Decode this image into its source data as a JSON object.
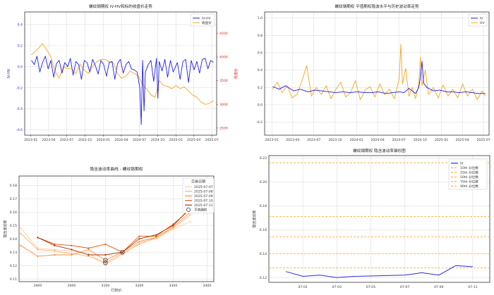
{
  "chart_data": [
    {
      "type": "line",
      "title": "螺纹钢期权 IV-HV和标的收盘价走势",
      "xlabel": "",
      "ylabel": "IV-HV",
      "y2label": "收盘价",
      "x_ticks": [
        "2023-01",
        "2023-04",
        "2023-07",
        "2023-10",
        "2024-01",
        "2024-04",
        "2024-07",
        "2024-10",
        "2025-01",
        "2025-04",
        "2025-07"
      ],
      "xlim": [
        "2022-12-01",
        "2025-07-25"
      ],
      "ylim": [
        -0.65,
        0.52
      ],
      "y_ticks": [
        -0.6,
        -0.4,
        -0.2,
        0.0,
        0.2,
        0.4
      ],
      "y2lim": [
        2350,
        4950
      ],
      "y2_ticks": [
        2500,
        3000,
        3500,
        4000,
        4500
      ],
      "grid": true,
      "legend": "upper right",
      "series": [
        {
          "name": "IV-HV",
          "axis": "left",
          "color": "#1f1fe6",
          "x": [
            "2023-01-04",
            "2023-01-18",
            "2023-02-01",
            "2023-02-15",
            "2023-03-01",
            "2023-03-15",
            "2023-03-29",
            "2023-04-12",
            "2023-04-26",
            "2023-05-10",
            "2023-05-24",
            "2023-06-07",
            "2023-06-21",
            "2023-07-05",
            "2023-07-19",
            "2023-08-02",
            "2023-08-16",
            "2023-08-30",
            "2023-09-13",
            "2023-09-27",
            "2023-10-11",
            "2023-10-25",
            "2023-11-08",
            "2023-11-22",
            "2023-12-06",
            "2023-12-20",
            "2024-01-03",
            "2024-01-17",
            "2024-01-31",
            "2024-02-14",
            "2024-02-28",
            "2024-03-13",
            "2024-03-27",
            "2024-04-10",
            "2024-04-24",
            "2024-05-08",
            "2024-05-22",
            "2024-06-05",
            "2024-06-19",
            "2024-07-03",
            "2024-07-10",
            "2024-07-17",
            "2024-07-24",
            "2024-07-31",
            "2024-08-14",
            "2024-08-28",
            "2024-09-11",
            "2024-09-25",
            "2024-10-02",
            "2024-10-09",
            "2024-10-23",
            "2024-11-06",
            "2024-11-20",
            "2024-12-04",
            "2024-12-18",
            "2025-01-08",
            "2025-01-22",
            "2025-02-05",
            "2025-02-19",
            "2025-03-05",
            "2025-03-19",
            "2025-04-02",
            "2025-04-16",
            "2025-04-30",
            "2025-05-14",
            "2025-05-28",
            "2025-06-11",
            "2025-06-25",
            "2025-07-09"
          ],
          "values": [
            0.06,
            0.02,
            0.1,
            -0.05,
            0.04,
            0.1,
            -0.02,
            0.06,
            -0.1,
            0.03,
            0.06,
            -0.06,
            0.04,
            0.0,
            0.08,
            -0.08,
            0.05,
            0.02,
            -0.12,
            0.06,
            0.04,
            -0.05,
            0.07,
            0.01,
            -0.07,
            0.06,
            0.02,
            -0.09,
            0.04,
            0.05,
            -0.12,
            0.03,
            0.07,
            -0.06,
            0.02,
            0.05,
            -0.02,
            -0.03,
            -0.05,
            -0.2,
            -0.55,
            0.06,
            -0.42,
            -0.05,
            0.02,
            0.06,
            -0.14,
            0.08,
            -0.3,
            0.05,
            -0.04,
            0.07,
            -0.1,
            0.06,
            -0.05,
            0.04,
            -0.12,
            0.05,
            0.07,
            -0.15,
            0.06,
            -0.03,
            0.05,
            -0.06,
            0.07,
            0.08,
            -0.02,
            0.06,
            0.04
          ]
        },
        {
          "name": "收盘价",
          "axis": "right",
          "color": "#f5a623",
          "x": [
            "2023-01-04",
            "2023-02-01",
            "2023-03-01",
            "2023-03-22",
            "2023-04-12",
            "2023-05-03",
            "2023-05-24",
            "2023-06-14",
            "2023-07-05",
            "2023-07-26",
            "2023-08-16",
            "2023-09-06",
            "2023-09-27",
            "2023-10-18",
            "2023-11-08",
            "2023-11-29",
            "2023-12-20",
            "2024-01-10",
            "2024-01-31",
            "2024-02-21",
            "2024-03-13",
            "2024-04-03",
            "2024-04-24",
            "2024-05-15",
            "2024-06-05",
            "2024-06-26",
            "2024-07-17",
            "2024-08-07",
            "2024-08-28",
            "2024-09-18",
            "2024-10-09",
            "2024-10-30",
            "2024-11-20",
            "2024-12-11",
            "2025-01-01",
            "2025-01-22",
            "2025-02-12",
            "2025-03-05",
            "2025-03-26",
            "2025-04-16",
            "2025-05-07",
            "2025-05-28",
            "2025-06-18",
            "2025-07-09"
          ],
          "values": [
            4050,
            4150,
            4280,
            4150,
            4000,
            3700,
            3550,
            3800,
            3750,
            3750,
            3650,
            3850,
            3720,
            3650,
            3800,
            3900,
            3950,
            3950,
            3900,
            3880,
            3650,
            3550,
            3600,
            3700,
            3650,
            3600,
            3420,
            3320,
            3200,
            3150,
            3500,
            3400,
            3380,
            3330,
            3400,
            3330,
            3370,
            3280,
            3200,
            3150,
            3050,
            3000,
            3020,
            3080
          ]
        }
      ]
    },
    {
      "type": "line",
      "title": "螺纹钢期权 平值期权隐波水平与历史波动率走势",
      "xlabel": "",
      "ylabel": "",
      "x_ticks": [
        "2023-01",
        "2023-04",
        "2023-07",
        "2023-10",
        "2024-01",
        "2024-04",
        "2024-07",
        "2024-10",
        "2025-01",
        "2025-04",
        "2025-07"
      ],
      "xlim": [
        "2022-12-01",
        "2025-07-25"
      ],
      "ylim": [
        -0.35,
        1.07
      ],
      "y_ticks": [
        -0.2,
        0.0,
        0.2,
        0.4,
        0.6,
        0.8,
        1.0
      ],
      "grid": true,
      "legend": "upper right",
      "series": [
        {
          "name": "IV",
          "color": "#1f1fe6",
          "x": [
            "2023-01-04",
            "2023-02-01",
            "2023-03-01",
            "2023-04-05",
            "2023-05-03",
            "2023-06-07",
            "2023-07-05",
            "2023-08-02",
            "2023-09-06",
            "2023-10-04",
            "2023-11-01",
            "2023-12-06",
            "2024-01-03",
            "2024-02-07",
            "2024-03-06",
            "2024-04-03",
            "2024-05-08",
            "2024-06-05",
            "2024-07-03",
            "2024-07-24",
            "2024-08-14",
            "2024-09-11",
            "2024-09-25",
            "2024-10-02",
            "2024-10-09",
            "2024-10-16",
            "2024-10-30",
            "2024-11-27",
            "2024-12-25",
            "2025-01-22",
            "2025-02-19",
            "2025-03-19",
            "2025-04-16",
            "2025-05-14",
            "2025-06-11",
            "2025-07-09"
          ],
          "values": [
            0.21,
            0.18,
            0.22,
            0.16,
            0.18,
            0.15,
            0.17,
            0.16,
            0.15,
            0.14,
            0.15,
            0.14,
            0.15,
            0.14,
            0.14,
            0.15,
            0.13,
            0.14,
            0.15,
            0.14,
            0.19,
            0.13,
            0.2,
            0.32,
            0.5,
            0.25,
            0.2,
            0.16,
            0.17,
            0.15,
            0.15,
            0.14,
            0.15,
            0.14,
            0.13,
            0.13
          ]
        },
        {
          "name": "HV",
          "color": "#f5a623",
          "x": [
            "2023-01-04",
            "2023-01-25",
            "2023-02-15",
            "2023-03-08",
            "2023-03-29",
            "2023-04-19",
            "2023-05-10",
            "2023-05-31",
            "2023-06-21",
            "2023-07-12",
            "2023-08-02",
            "2023-08-23",
            "2023-09-13",
            "2023-10-04",
            "2023-10-25",
            "2023-11-15",
            "2023-12-06",
            "2023-12-27",
            "2024-01-17",
            "2024-02-07",
            "2024-02-28",
            "2024-03-20",
            "2024-04-10",
            "2024-05-01",
            "2024-05-22",
            "2024-06-12",
            "2024-07-03",
            "2024-07-10",
            "2024-07-17",
            "2024-07-31",
            "2024-08-14",
            "2024-08-28",
            "2024-09-11",
            "2024-09-25",
            "2024-10-02",
            "2024-10-09",
            "2024-10-23",
            "2024-11-06",
            "2024-11-27",
            "2024-12-18",
            "2025-01-08",
            "2025-01-29",
            "2025-02-19",
            "2025-03-12",
            "2025-04-02",
            "2025-04-23",
            "2025-05-14",
            "2025-06-04",
            "2025-06-25",
            "2025-07-09"
          ],
          "values": [
            0.18,
            0.26,
            0.14,
            0.22,
            0.08,
            0.12,
            0.27,
            0.45,
            0.1,
            0.2,
            0.12,
            0.22,
            0.07,
            0.18,
            0.26,
            0.09,
            0.14,
            0.28,
            0.06,
            0.17,
            0.21,
            0.09,
            0.24,
            0.12,
            0.18,
            0.07,
            0.3,
            0.7,
            0.24,
            0.42,
            0.1,
            0.2,
            0.07,
            0.24,
            0.55,
            0.22,
            0.4,
            0.12,
            0.2,
            0.08,
            0.23,
            0.1,
            0.18,
            0.08,
            0.24,
            0.1,
            0.18,
            0.06,
            0.16,
            0.1
          ]
        }
      ]
    },
    {
      "type": "line",
      "title": "隐含波动率曲线 - 螺纹钢期权",
      "xlabel": "行权价",
      "ylabel": "隐含波动率",
      "xlim": [
        2845,
        3420
      ],
      "ylim": [
        0.108,
        0.187
      ],
      "x_ticks": [
        2900,
        3000,
        3100,
        3200,
        3300,
        3400
      ],
      "y_ticks": [
        0.11,
        0.12,
        0.13,
        0.14,
        0.15,
        0.16,
        0.17,
        0.18
      ],
      "grid": true,
      "legend": "upper right",
      "legend_title": "交易日期",
      "x": [
        2850,
        2900,
        2950,
        3000,
        3050,
        3100,
        3150,
        3200,
        3250,
        3300,
        3350,
        3400
      ],
      "series": [
        {
          "name": "2025-07-07",
          "color": "#fdd0a2",
          "values": [
            0.148,
            0.133,
            0.132,
            0.131,
            0.129,
            0.121,
            0.128,
            0.137,
            0.14,
            0.147,
            0.153,
            null
          ]
        },
        {
          "name": "2025-07-08",
          "color": "#fdae6b",
          "values": [
            0.144,
            0.132,
            0.131,
            0.129,
            0.127,
            0.122,
            0.129,
            0.136,
            0.141,
            0.148,
            0.158,
            null
          ]
        },
        {
          "name": "2025-07-09",
          "color": "#fd8d3c",
          "values": [
            0.135,
            0.127,
            0.128,
            0.128,
            0.132,
            0.124,
            0.13,
            0.138,
            0.141,
            0.149,
            0.16,
            0.17
          ]
        },
        {
          "name": "2025-07-10",
          "color": "#e6550d",
          "values": [
            null,
            0.141,
            0.136,
            0.135,
            0.133,
            0.136,
            0.13,
            0.142,
            0.142,
            0.151,
            0.162,
            0.17
          ]
        },
        {
          "name": "2025-07-11",
          "color": "#a63603",
          "values": [
            null,
            0.141,
            0.135,
            0.132,
            0.128,
            0.128,
            0.13,
            0.14,
            0.143,
            0.15,
            0.163,
            0.17
          ]
        }
      ],
      "atm_marker": {
        "label": "平值期权",
        "points": [
          [
            3100,
            0.122
          ],
          [
            3100,
            0.124
          ],
          [
            3150,
            0.13
          ]
        ]
      }
    },
    {
      "type": "line",
      "title": "螺纹钢期权 隐含波动率锥形图",
      "xlabel": "",
      "ylabel": "隐含波动率",
      "x_ticks": [
        "07-01",
        "07-03",
        "07-05",
        "07-07",
        "07-09",
        "07-11"
      ],
      "xlim": [
        "2025-06-29",
        "2025-07-12"
      ],
      "ylim": [
        0.116,
        0.222
      ],
      "y_ticks": [
        0.12,
        0.14,
        0.16,
        0.18,
        0.2,
        0.22
      ],
      "grid": true,
      "legend": "upper right",
      "series": [
        {
          "name": "IV",
          "color": "#2b2bd9",
          "x": [
            "2025-06-30",
            "2025-07-01",
            "2025-07-02",
            "2025-07-03",
            "2025-07-04",
            "2025-07-07",
            "2025-07-08",
            "2025-07-09",
            "2025-07-10",
            "2025-07-11"
          ],
          "values": [
            0.125,
            0.121,
            0.122,
            0.12,
            0.121,
            0.122,
            0.124,
            0.122,
            0.13,
            0.129
          ]
        }
      ],
      "percentiles": [
        {
          "name": "10th 分位数",
          "value": 0.128
        },
        {
          "name": "25th 分位数",
          "value": 0.14
        },
        {
          "name": "50th 分位数",
          "value": 0.154
        },
        {
          "name": "75th 分位数",
          "value": 0.171
        },
        {
          "name": "90th 分位数",
          "value": 0.216
        }
      ],
      "percentile_color": "#f5a623"
    }
  ]
}
